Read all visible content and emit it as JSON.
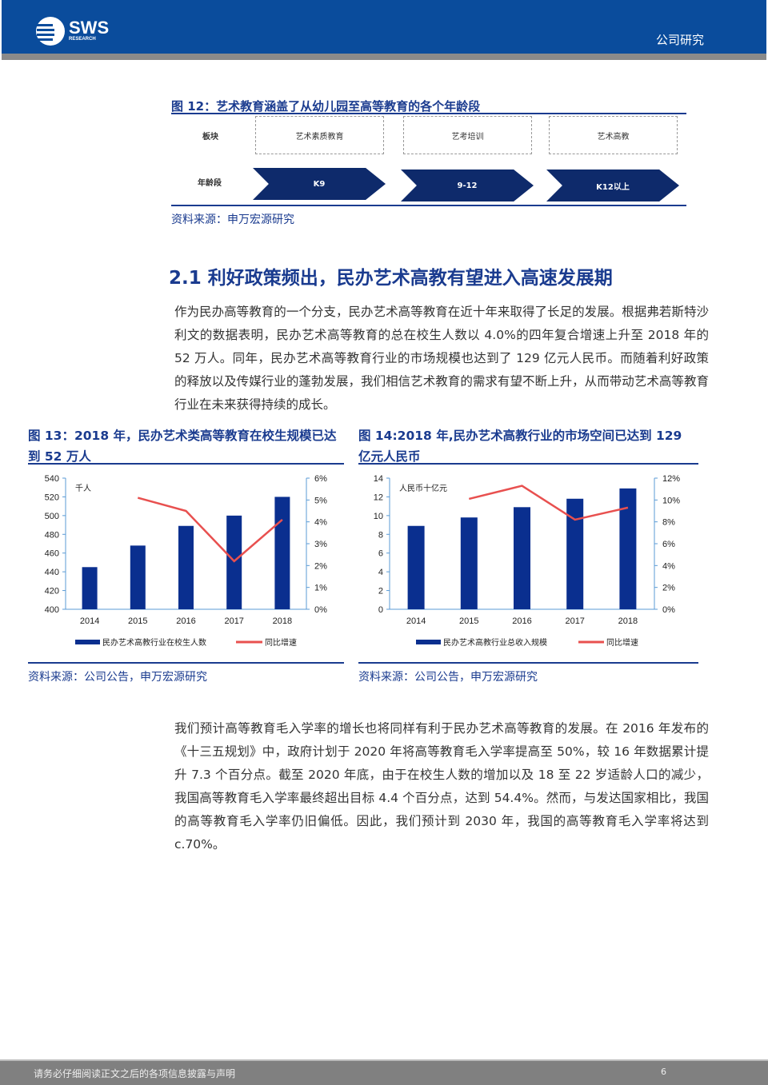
{
  "header": {
    "logo_text": "SWS",
    "logo_sub": "RESEARCH",
    "section": "公司研究",
    "brand_color": "#0a4c9c"
  },
  "fig12": {
    "title": "图 12：艺术教育涵盖了从幼儿园至高等教育的各个年龄段",
    "row1_label": "板块",
    "row2_label": "年龄段",
    "segments": [
      "艺术素质教育",
      "艺考培训",
      "艺术高教"
    ],
    "ages": [
      "K9",
      "9-12",
      "K12以上"
    ],
    "source": "资料来源：申万宏源研究"
  },
  "section": {
    "title": "2.1 利好政策频出，民办艺术高教有望进入高速发展期"
  },
  "paragraphs": [
    "作为民办高等教育的一个分支，民办艺术高等教育在近十年来取得了长足的发展。根据弗若斯特沙利文的数据表明，民办艺术高等教育的总在校生人数以 4.0%的四年复合增速上升至 2018 年的 52 万人。同年，民办艺术高等教育行业的市场规模也达到了 129 亿元人民币。而随着利好政策的释放以及传媒行业的蓬勃发展，我们相信艺术教育的需求有望不断上升，从而带动艺术高等教育行业在未来获得持续的成长。",
    "我们预计高等教育毛入学率的增长也将同样有利于民办艺术高等教育的发展。在 2016 年发布的《十三五规划》中，政府计划于 2020 年将高等教育毛入学率提高至 50%，较 16 年数据累计提升 7.3 个百分点。截至 2020 年底，由于在校生人数的增加以及 18 至 22 岁适龄人口的减少，我国高等教育毛入学率最终超出目标 4.4 个百分点，达到 54.4%。然而，与发达国家相比，我国的高等教育毛入学率仍旧偏低。因此，我们预计到 2030 年，我国的高等教育毛入学率将达到 c.70%。"
  ],
  "fig13": {
    "title": "图 13：2018 年，民办艺术类高等教育在校生规模已达到 52 万人",
    "source": "资料来源：公司公告，申万宏源研究"
  },
  "fig14": {
    "title": "图 14:2018 年,民办艺术高教行业的市场空间已达到 129 亿元人民币",
    "source": "资料来源：公司公告，申万宏源研究"
  },
  "chart_data": [
    {
      "type": "bar",
      "categories": [
        "2014",
        "2015",
        "2016",
        "2017",
        "2018"
      ],
      "unit_label": "千人",
      "ylim": [
        400,
        540
      ],
      "yticks": [
        400,
        420,
        440,
        460,
        480,
        500,
        520,
        540
      ],
      "y2lim": [
        0,
        6
      ],
      "y2ticks": [
        "0%",
        "1%",
        "2%",
        "3%",
        "4%",
        "5%",
        "6%"
      ],
      "series": [
        {
          "name": "民办艺术高教行业在校生人数",
          "type": "bar",
          "color": "#0a2f8f",
          "values": [
            445,
            468,
            489,
            500,
            520
          ]
        },
        {
          "name": "同比增速",
          "type": "line",
          "axis": "right",
          "color": "#e8504f",
          "values": [
            null,
            5.1,
            4.5,
            2.2,
            4.1
          ]
        }
      ],
      "legend": "bottom",
      "grid": false
    },
    {
      "type": "bar",
      "categories": [
        "2014",
        "2015",
        "2016",
        "2017",
        "2018"
      ],
      "unit_label": "人民币十亿元",
      "ylim": [
        0,
        14
      ],
      "yticks": [
        0,
        2,
        4,
        6,
        8,
        10,
        12,
        14
      ],
      "y2lim": [
        0,
        12
      ],
      "y2ticks": [
        "0%",
        "2%",
        "4%",
        "6%",
        "8%",
        "10%",
        "12%"
      ],
      "series": [
        {
          "name": "民办艺术高教行业总收入规模",
          "type": "bar",
          "color": "#0a2f8f",
          "values": [
            8.9,
            9.8,
            10.9,
            11.8,
            12.9
          ]
        },
        {
          "name": "同比增速",
          "type": "line",
          "axis": "right",
          "color": "#e8504f",
          "values": [
            null,
            10.1,
            11.3,
            8.2,
            9.3
          ]
        }
      ],
      "legend": "bottom",
      "grid": false
    }
  ],
  "footer": {
    "disclaimer": "请务必仔细阅读正文之后的各项信息披露与声明",
    "page": "6"
  }
}
